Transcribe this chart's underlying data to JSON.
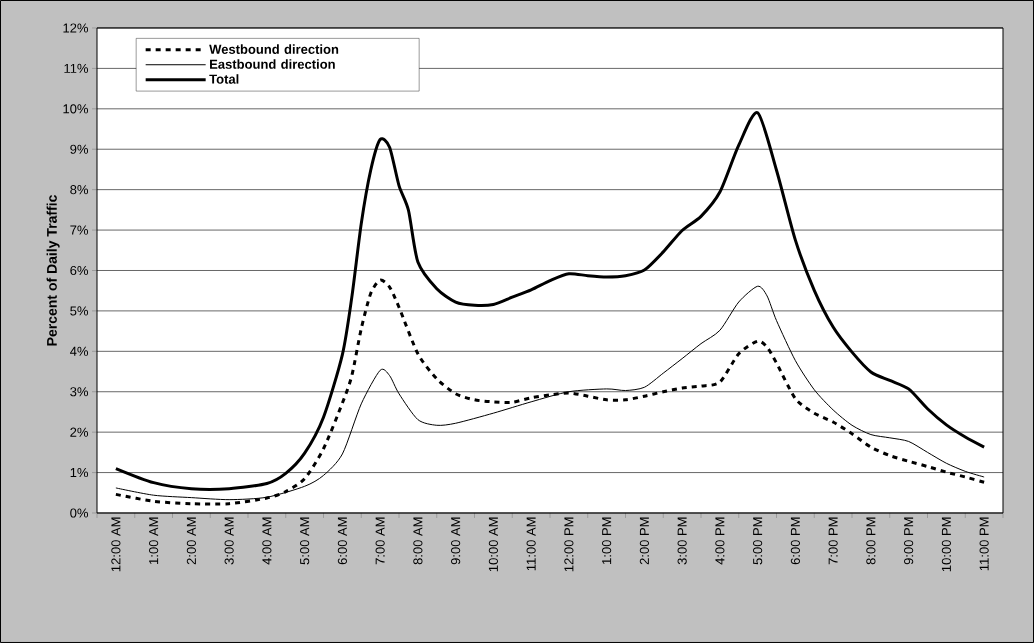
{
  "chart_data": {
    "type": "line",
    "ylabel": "Percent of Daily Traffic",
    "xlim": [
      -0.5,
      23.5
    ],
    "ylim": [
      0,
      12
    ],
    "xticks": [
      {
        "value": 0,
        "label": "12:00 AM"
      },
      {
        "value": 1,
        "label": "1:00 AM"
      },
      {
        "value": 2,
        "label": "2:00 AM"
      },
      {
        "value": 3,
        "label": "3:00 AM"
      },
      {
        "value": 4,
        "label": "4:00 AM"
      },
      {
        "value": 5,
        "label": "5:00 AM"
      },
      {
        "value": 6,
        "label": "6:00 AM"
      },
      {
        "value": 7,
        "label": "7:00 AM"
      },
      {
        "value": 8,
        "label": "8:00 AM"
      },
      {
        "value": 9,
        "label": "9:00 AM"
      },
      {
        "value": 10,
        "label": "10:00 AM"
      },
      {
        "value": 11,
        "label": "11:00 AM"
      },
      {
        "value": 12,
        "label": "12:00 PM"
      },
      {
        "value": 13,
        "label": "1:00 PM"
      },
      {
        "value": 14,
        "label": "2:00 PM"
      },
      {
        "value": 15,
        "label": "3:00 PM"
      },
      {
        "value": 16,
        "label": "4:00 PM"
      },
      {
        "value": 17,
        "label": "5:00 PM"
      },
      {
        "value": 18,
        "label": "6:00 PM"
      },
      {
        "value": 19,
        "label": "7:00 PM"
      },
      {
        "value": 20,
        "label": "8:00 PM"
      },
      {
        "value": 21,
        "label": "9:00 PM"
      },
      {
        "value": 22,
        "label": "10:00 PM"
      },
      {
        "value": 23,
        "label": "11:00 PM"
      },
      {
        "value": -0.5,
        "label": null
      },
      {
        "value": 0.5,
        "label": null
      },
      {
        "value": 1.5,
        "label": null
      },
      {
        "value": 2.5,
        "label": null
      },
      {
        "value": 3.5,
        "label": null
      },
      {
        "value": 4.5,
        "label": null
      },
      {
        "value": 5.5,
        "label": null
      },
      {
        "value": 6.5,
        "label": null
      },
      {
        "value": 7.5,
        "label": null
      },
      {
        "value": 8.5,
        "label": null
      },
      {
        "value": 9.5,
        "label": null
      },
      {
        "value": 10.5,
        "label": null
      },
      {
        "value": 11.5,
        "label": null
      },
      {
        "value": 12.5,
        "label": null
      },
      {
        "value": 13.5,
        "label": null
      },
      {
        "value": 14.5,
        "label": null
      },
      {
        "value": 15.5,
        "label": null
      },
      {
        "value": 16.5,
        "label": null
      },
      {
        "value": 17.5,
        "label": null
      },
      {
        "value": 18.5,
        "label": null
      },
      {
        "value": 19.5,
        "label": null
      },
      {
        "value": 20.5,
        "label": null
      },
      {
        "value": 21.5,
        "label": null
      },
      {
        "value": 22.5,
        "label": null
      },
      {
        "value": 23.5,
        "label": null
      }
    ],
    "yticks": [
      {
        "value": 0,
        "label": "0%"
      },
      {
        "value": 1,
        "label": "1%"
      },
      {
        "value": 2,
        "label": "2%"
      },
      {
        "value": 3,
        "label": "3%"
      },
      {
        "value": 4,
        "label": "4%"
      },
      {
        "value": 5,
        "label": "5%"
      },
      {
        "value": 6,
        "label": "6%"
      },
      {
        "value": 7,
        "label": "7%"
      },
      {
        "value": 8,
        "label": "8%"
      },
      {
        "value": 9,
        "label": "9%"
      },
      {
        "value": 10,
        "label": "10%"
      },
      {
        "value": 11,
        "label": "11%"
      },
      {
        "value": 12,
        "label": "12%"
      }
    ],
    "grid": "y",
    "legend": "top left",
    "marker": "none",
    "series": [
      {
        "name": "Westbound direction",
        "color": "#000000",
        "line_style": "dashed",
        "x": [
          0,
          1,
          2,
          3,
          4,
          4.5,
          5,
          5.5,
          6,
          6.25,
          6.5,
          6.75,
          7,
          7.25,
          7.5,
          8,
          8.5,
          9,
          9.5,
          10,
          10.5,
          11,
          11.5,
          12,
          12.5,
          13,
          13.5,
          14,
          14.5,
          15,
          15.5,
          16,
          16.5,
          17,
          17.25,
          17.5,
          18,
          18.5,
          19,
          19.5,
          20,
          20.5,
          21,
          21.5,
          22,
          22.5,
          23
        ],
        "values": [
          0.46,
          0.29,
          0.23,
          0.23,
          0.37,
          0.53,
          0.85,
          1.59,
          2.72,
          3.4,
          4.56,
          5.43,
          5.76,
          5.59,
          5.09,
          3.94,
          3.32,
          2.95,
          2.8,
          2.75,
          2.74,
          2.85,
          2.92,
          2.97,
          2.89,
          2.8,
          2.8,
          2.89,
          3.0,
          3.09,
          3.14,
          3.24,
          3.94,
          4.25,
          4.1,
          3.71,
          2.83,
          2.47,
          2.25,
          1.96,
          1.63,
          1.42,
          1.28,
          1.15,
          1.01,
          0.89,
          0.76
        ]
      },
      {
        "name": "Eastbound direction",
        "color": "#000000",
        "line_style": "solid",
        "x": [
          0,
          1,
          2,
          3,
          4,
          5,
          5.5,
          6,
          6.5,
          7,
          7.25,
          7.5,
          8,
          8.5,
          9,
          10,
          11,
          12,
          13,
          13.5,
          14,
          14.5,
          15,
          15.5,
          16,
          16.5,
          17,
          17.25,
          17.5,
          18,
          18.5,
          19,
          19.5,
          20,
          20.5,
          21,
          21.5,
          22,
          22.5,
          23
        ],
        "values": [
          0.62,
          0.44,
          0.38,
          0.33,
          0.39,
          0.66,
          0.93,
          1.46,
          2.7,
          3.53,
          3.4,
          2.95,
          2.31,
          2.17,
          2.22,
          2.47,
          2.75,
          3.0,
          3.07,
          3.03,
          3.11,
          3.46,
          3.82,
          4.19,
          4.52,
          5.22,
          5.61,
          5.37,
          4.76,
          3.77,
          3.05,
          2.55,
          2.17,
          1.94,
          1.86,
          1.77,
          1.5,
          1.23,
          1.03,
          0.89
        ]
      },
      {
        "name": "Total",
        "color": "#000000",
        "line_style": "solid",
        "x": [
          0,
          1,
          2,
          3,
          4,
          4.5,
          5,
          5.5,
          6,
          6.25,
          6.5,
          6.75,
          7,
          7.25,
          7.5,
          7.75,
          8,
          8.5,
          9,
          9.5,
          10,
          10.5,
          11,
          11.5,
          12,
          12.5,
          13,
          13.5,
          14,
          14.5,
          15,
          15.5,
          16,
          16.5,
          17,
          17.5,
          18,
          18.5,
          19,
          19.5,
          20,
          20.5,
          21,
          21.5,
          22,
          22.5,
          23
        ],
        "values": [
          1.1,
          0.75,
          0.6,
          0.6,
          0.73,
          0.98,
          1.48,
          2.37,
          3.92,
          5.34,
          7.16,
          8.48,
          9.24,
          9.05,
          8.1,
          7.49,
          6.21,
          5.55,
          5.22,
          5.14,
          5.16,
          5.34,
          5.52,
          5.75,
          5.92,
          5.87,
          5.84,
          5.87,
          6.01,
          6.46,
          6.99,
          7.34,
          7.94,
          9.1,
          9.9,
          8.48,
          6.75,
          5.51,
          4.6,
          3.98,
          3.49,
          3.28,
          3.07,
          2.58,
          2.18,
          1.88,
          1.63
        ]
      }
    ]
  }
}
